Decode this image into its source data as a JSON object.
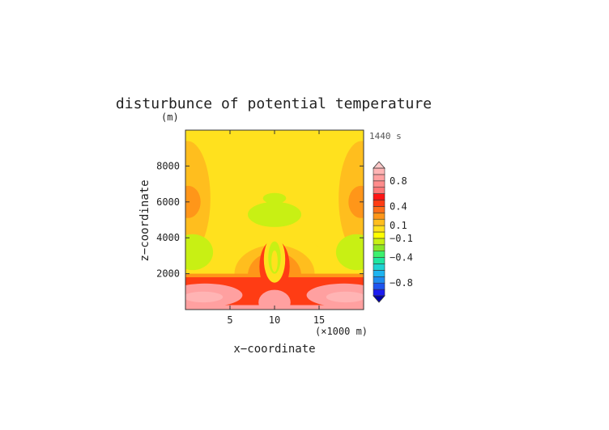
{
  "chart_data": {
    "type": "heatmap",
    "title": "disturbunce of potential temperature",
    "ylabel": "z−coordinate",
    "yunit": "(m)",
    "xlabel": "x−coordinate",
    "xunit": "(×1000 m)",
    "time_label": "1440 s",
    "xlim": [
      0,
      20
    ],
    "ylim": [
      0,
      10000
    ],
    "x_ticks": [
      5,
      10,
      15
    ],
    "x_tick_labels": [
      "5",
      "10",
      "15"
    ],
    "y_ticks": [
      2000,
      4000,
      6000,
      8000
    ],
    "y_tick_labels": [
      "2000",
      "4000",
      "6000",
      "8000"
    ],
    "grid": false,
    "colorbar": {
      "extend": "both",
      "bounds": [
        -1.0,
        -0.9,
        -0.8,
        -0.7,
        -0.6,
        -0.5,
        -0.4,
        -0.3,
        -0.2,
        -0.1,
        0.0,
        0.1,
        0.2,
        0.3,
        0.4,
        0.5,
        0.6,
        0.7,
        0.8,
        0.9,
        1.0
      ],
      "colors": [
        "#1c1cf0",
        "#1e55f0",
        "#1e8cf0",
        "#1eb4f0",
        "#1ed2d2",
        "#1ee6a0",
        "#3cf06e",
        "#8ce628",
        "#c8f014",
        "#ffff00",
        "#ffe11e",
        "#ffbe1e",
        "#ff9619",
        "#ff6e19",
        "#ff3c14",
        "#ff1414",
        "#ff7878",
        "#ff8c8c",
        "#ffa0a0",
        "#ffb4b4"
      ],
      "under_color": "#0000aa",
      "over_color": "#ffc8c8",
      "tick_values": [
        0.8,
        0.4,
        0.1,
        -0.1,
        -0.4,
        -0.8
      ],
      "tick_labels": [
        "0.8",
        "0.4",
        "0.1",
        "−0.1",
        "−0.4",
        "−0.8"
      ]
    },
    "field_regions": [
      {
        "x0": 0,
        "x1": 20,
        "z0": 0,
        "z1": 10000,
        "value": 0.05
      },
      {
        "x0": 0,
        "x1": 20,
        "z0": 0,
        "z1": 4500,
        "value": 0.05
      },
      {
        "cx": 0.2,
        "cz": 6200,
        "rx": 2.6,
        "rz": 3200,
        "value": 0.15
      },
      {
        "cx": 19.8,
        "cz": 6200,
        "rx": 2.6,
        "rz": 3200,
        "value": 0.15
      },
      {
        "cx": 0.3,
        "cz": 6000,
        "rx": 1.4,
        "rz": 900,
        "value": 0.25
      },
      {
        "cx": 19.7,
        "cz": 6000,
        "rx": 1.4,
        "rz": 900,
        "value": 0.25
      },
      {
        "cx": 0.8,
        "cz": 3200,
        "rx": 2.3,
        "rz": 1000,
        "value": -0.15
      },
      {
        "cx": 19.2,
        "cz": 3200,
        "rx": 2.3,
        "rz": 1000,
        "value": -0.15
      },
      {
        "cx": 10,
        "cz": 5300,
        "rx": 3.0,
        "rz": 700,
        "value": -0.15
      },
      {
        "cx": 10,
        "cz": 6200,
        "rx": 1.3,
        "rz": 300,
        "value": -0.15
      },
      {
        "cx": 10,
        "cz": 2200,
        "rx": 6.5,
        "rz": 2000,
        "value": 0.05
      },
      {
        "cx": 10,
        "cz": 2000,
        "rx": 4.5,
        "rz": 1600,
        "value": 0.15
      },
      {
        "cx": 10,
        "cz": 1900,
        "rx": 3.0,
        "rz": 1300,
        "value": 0.25
      },
      {
        "x0": 0,
        "x1": 20,
        "z0": 1400,
        "z1": 2000,
        "value": 0.25
      },
      {
        "x0": 0,
        "x1": 20,
        "z0": 0,
        "z1": 1800,
        "value": 0.45
      },
      {
        "cx": 10,
        "cz": 2400,
        "rx": 1.7,
        "rz": 1500,
        "value": 0.45
      },
      {
        "cx": 10,
        "cz": 2800,
        "rx": 1.2,
        "rz": 1300,
        "value": 0.05
      },
      {
        "cx": 10,
        "cz": 2900,
        "rx": 0.7,
        "rz": 900,
        "value": -0.15
      },
      {
        "cx": 10,
        "cz": 2700,
        "rx": 0.35,
        "rz": 600,
        "value": 0.05
      },
      {
        "cx": 2.2,
        "cz": 800,
        "rx": 4.2,
        "rz": 650,
        "value": 0.85
      },
      {
        "cx": 17.8,
        "cz": 800,
        "rx": 4.2,
        "rz": 650,
        "value": 0.85
      },
      {
        "cx": 10,
        "cz": 400,
        "rx": 1.8,
        "rz": 700,
        "value": 0.85
      },
      {
        "x0": 0,
        "x1": 20,
        "z0": 0,
        "z1": 250,
        "value": 0.85
      },
      {
        "cx": 2.0,
        "cz": 700,
        "rx": 2.2,
        "rz": 300,
        "value": 0.95
      },
      {
        "cx": 18.0,
        "cz": 700,
        "rx": 2.2,
        "rz": 300,
        "value": 0.95
      }
    ]
  }
}
